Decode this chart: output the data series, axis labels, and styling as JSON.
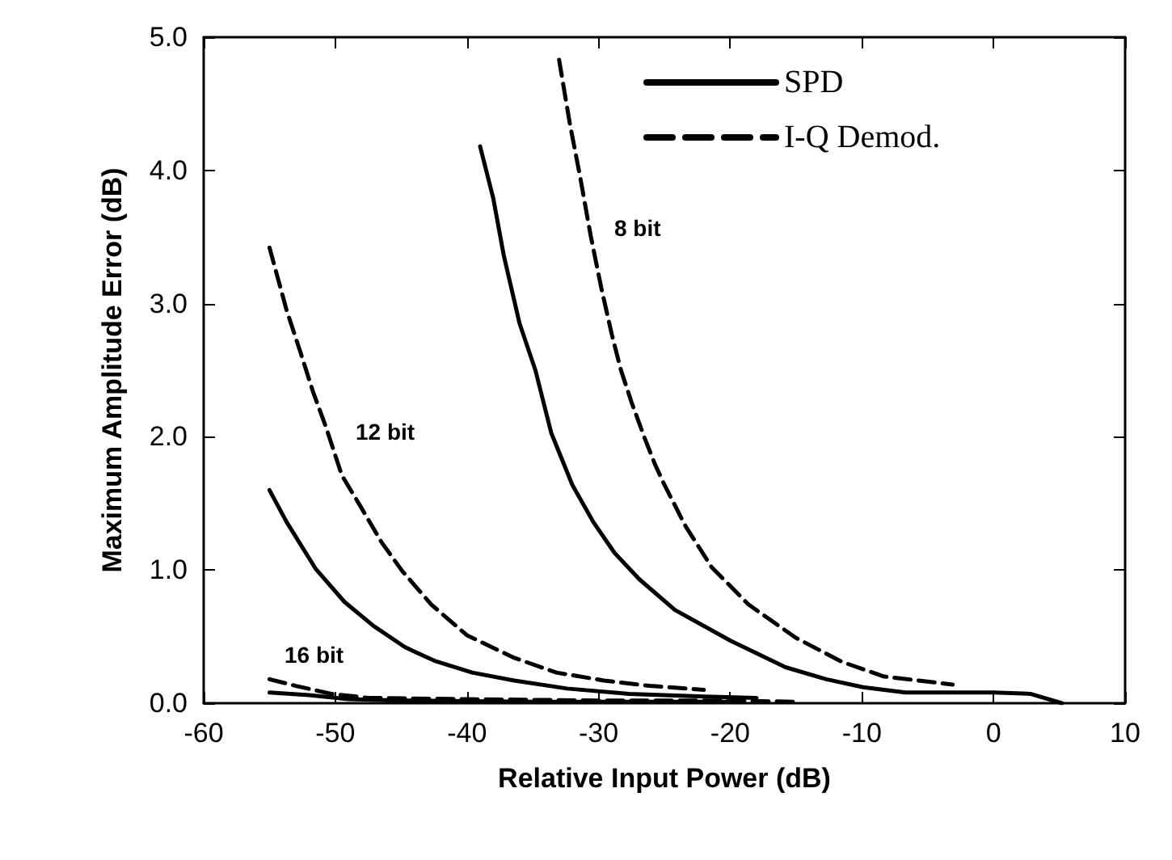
{
  "chart_data": {
    "type": "line",
    "xlabel": "Relative Input Power (dB)",
    "ylabel": "Maximum Amplitude Error (dB)",
    "xlim": [
      -60,
      10
    ],
    "xticks": [
      -60,
      -50,
      -40,
      -30,
      -20,
      -10,
      0,
      10
    ],
    "ylim": [
      0,
      5
    ],
    "yticks": [
      {
        "value": 0,
        "label": "0.0"
      },
      {
        "value": 1,
        "label": "1.0"
      },
      {
        "value": 2,
        "label": "2.0"
      },
      {
        "value": 3,
        "label": "3.0"
      },
      {
        "value": 4,
        "label": "4.0"
      },
      {
        "value": 5,
        "label": "5.0"
      }
    ],
    "grid": false,
    "legend": "top right",
    "marker": "none",
    "annotations": [
      "8 bit",
      "12 bit",
      "16 bit"
    ],
    "series": [
      {
        "name": "SPD",
        "color": "#000000",
        "line_style": "solid",
        "x": [
          -39.0,
          -38.0,
          -37.2,
          -36.0,
          -34.8,
          -33.6,
          -32.0,
          -30.4,
          -28.8,
          -26.9,
          -24.2,
          -20,
          -15.8,
          -12.7,
          -9.9,
          -6.7,
          0,
          2.8,
          5.2
        ],
        "values": [
          4.18,
          3.79,
          3.36,
          2.85,
          2.5,
          2.03,
          1.64,
          1.36,
          1.13,
          0.93,
          0.7,
          0.47,
          0.27,
          0.18,
          0.12,
          0.08,
          0.08,
          0.07,
          0
        ]
      },
      {
        "name": "I-Q Demod.",
        "color": "#000000",
        "line_style": "dashed",
        "x": [
          -33.0,
          -32.2,
          -31.4,
          -30.6,
          -29.8,
          -29.0,
          -28.3,
          -27.5,
          -26.5,
          -25.7,
          -25.0,
          -23.4,
          -21.4,
          -18.6,
          -15.0,
          -11.5,
          -8.3,
          -3.1
        ],
        "values": [
          4.83,
          4.36,
          3.95,
          3.51,
          3.12,
          2.77,
          2.5,
          2.26,
          1.99,
          1.79,
          1.64,
          1.33,
          1.02,
          0.74,
          0.49,
          0.31,
          0.2,
          0.14
        ]
      },
      {
        "color": "#000000",
        "line_style": "solid",
        "x": [
          -55,
          -53.7,
          -51.5,
          -49.3,
          -47.1,
          -44.7,
          -42.5,
          -39.6,
          -36.4,
          -32.4,
          -27.7,
          -22,
          -18
        ],
        "values": [
          1.6,
          1.36,
          1.01,
          0.76,
          0.58,
          0.42,
          0.32,
          0.23,
          0.17,
          0.11,
          0.07,
          0.05,
          0.04
        ]
      },
      {
        "color": "#000000",
        "line_style": "dashed",
        "x": [
          -55,
          -53.7,
          -52.7,
          -51.7,
          -50.7,
          -49.5,
          -48.1,
          -46.5,
          -44.9,
          -42.7,
          -40,
          -36.4,
          -33.2,
          -29.6,
          -26.1,
          -22
        ],
        "values": [
          3.42,
          2.95,
          2.65,
          2.34,
          2.07,
          1.71,
          1.48,
          1.21,
          0.99,
          0.74,
          0.51,
          0.34,
          0.23,
          0.17,
          0.13,
          0.1
        ]
      },
      {
        "color": "#000000",
        "line_style": "solid",
        "x": [
          -55,
          -52,
          -49,
          -45,
          -35,
          -20
        ],
        "values": [
          0.08,
          0.06,
          0.03,
          0.02,
          0.01,
          0.01
        ]
      },
      {
        "color": "#000000",
        "line_style": "dashed",
        "x": [
          -55,
          -53,
          -50.3,
          -47.5,
          -40,
          -30,
          -20,
          -15
        ],
        "values": [
          0.18,
          0.13,
          0.07,
          0.04,
          0.03,
          0.02,
          0.02,
          0.01
        ]
      }
    ]
  }
}
